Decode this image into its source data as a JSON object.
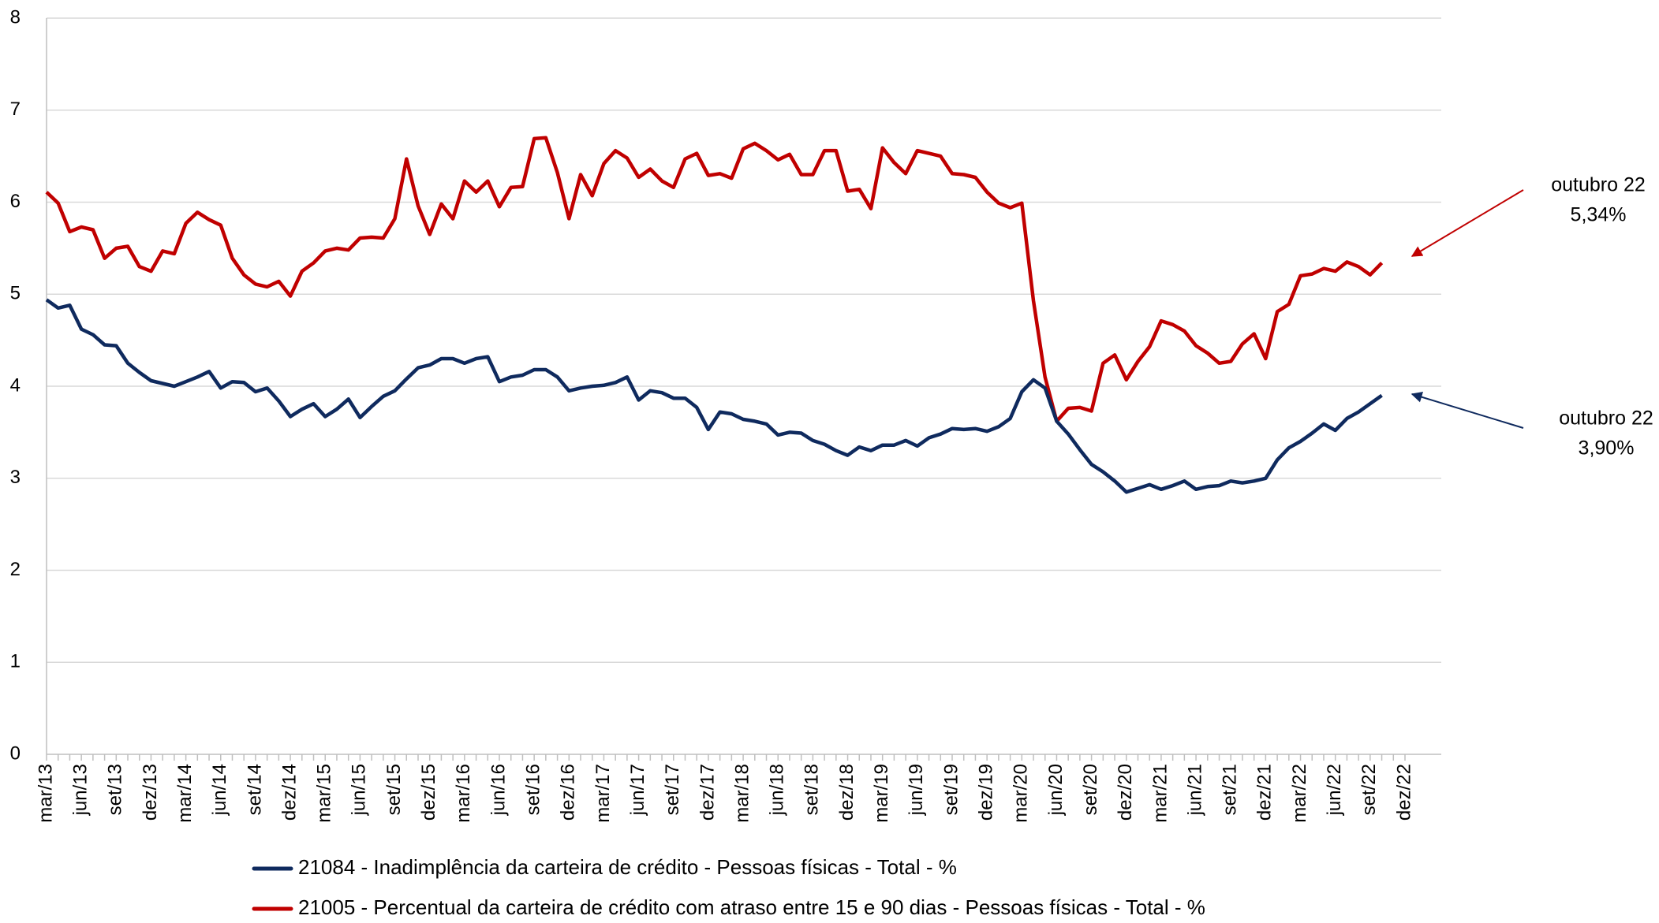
{
  "chart_data": {
    "type": "line",
    "categories": [
      "mar/13",
      null,
      null,
      "jun/13",
      null,
      null,
      "set/13",
      null,
      null,
      "dez/13",
      null,
      null,
      "mar/14",
      null,
      null,
      "jun/14",
      null,
      null,
      "set/14",
      null,
      null,
      "dez/14",
      null,
      null,
      "mar/15",
      null,
      null,
      "jun/15",
      null,
      null,
      "set/15",
      null,
      null,
      "dez/15",
      null,
      null,
      "mar/16",
      null,
      null,
      "jun/16",
      null,
      null,
      "set/16",
      null,
      null,
      "dez/16",
      null,
      null,
      "mar/17",
      null,
      null,
      "jun/17",
      null,
      null,
      "set/17",
      null,
      null,
      "dez/17",
      null,
      null,
      "mar/18",
      null,
      null,
      "jun/18",
      null,
      null,
      "set/18",
      null,
      null,
      "dez/18",
      null,
      null,
      "mar/19",
      null,
      null,
      "jun/19",
      null,
      null,
      "set/19",
      null,
      null,
      "dez/19",
      null,
      null,
      "mar/20",
      null,
      null,
      "jun/20",
      null,
      null,
      "set/20",
      null,
      null,
      "dez/20",
      null,
      null,
      "mar/21",
      null,
      null,
      "jun/21",
      null,
      null,
      "set/21",
      null,
      null,
      "dez/21",
      null,
      null,
      "mar/22",
      null,
      null,
      "jun/22",
      null,
      null,
      "set/22",
      null,
      null,
      "dez/22"
    ],
    "series": [
      {
        "name": "21084 - Inadimplência da carteira de crédito - Pessoas físicas - Total - %",
        "color": "#0f2a5e",
        "values": [
          4.94,
          4.85,
          4.88,
          4.62,
          4.56,
          4.45,
          4.44,
          4.25,
          4.15,
          4.06,
          4.03,
          4.0,
          4.05,
          4.1,
          4.16,
          3.98,
          4.05,
          4.04,
          3.94,
          3.98,
          3.84,
          3.67,
          3.75,
          3.81,
          3.67,
          3.75,
          3.86,
          3.66,
          3.78,
          3.89,
          3.95,
          4.08,
          4.2,
          4.23,
          4.3,
          4.3,
          4.25,
          4.3,
          4.32,
          4.05,
          4.1,
          4.12,
          4.18,
          4.18,
          4.1,
          3.95,
          3.98,
          4.0,
          4.01,
          4.04,
          4.1,
          3.85,
          3.95,
          3.93,
          3.87,
          3.87,
          3.77,
          3.53,
          3.72,
          3.7,
          3.64,
          3.62,
          3.59,
          3.47,
          3.5,
          3.49,
          3.41,
          3.37,
          3.3,
          3.25,
          3.34,
          3.3,
          3.36,
          3.36,
          3.41,
          3.35,
          3.44,
          3.48,
          3.54,
          3.53,
          3.54,
          3.51,
          3.56,
          3.65,
          3.94,
          4.07,
          3.98,
          3.62,
          3.48,
          3.31,
          3.15,
          3.07,
          2.97,
          2.85,
          2.89,
          2.93,
          2.88,
          2.92,
          2.97,
          2.88,
          2.91,
          2.92,
          2.97,
          2.95,
          2.97,
          3.0,
          3.2,
          3.33,
          3.4,
          3.49,
          3.59,
          3.52,
          3.65,
          3.72,
          3.81,
          3.9,
          null,
          null
        ]
      },
      {
        "name": "21005 - Percentual da carteira de crédito com atraso entre 15 e 90 dias - Pessoas físicas - Total - %",
        "color": "#c00000",
        "values": [
          6.11,
          5.99,
          5.68,
          5.73,
          5.7,
          5.39,
          5.5,
          5.52,
          5.3,
          5.25,
          5.47,
          5.44,
          5.77,
          5.89,
          5.81,
          5.75,
          5.39,
          5.21,
          5.11,
          5.08,
          5.14,
          4.98,
          5.25,
          5.34,
          5.47,
          5.5,
          5.48,
          5.61,
          5.62,
          5.61,
          5.82,
          6.47,
          5.96,
          5.65,
          5.98,
          5.82,
          6.23,
          6.11,
          6.23,
          5.95,
          6.16,
          6.17,
          6.69,
          6.7,
          6.32,
          5.82,
          6.3,
          6.07,
          6.42,
          6.56,
          6.48,
          6.27,
          6.36,
          6.23,
          6.16,
          6.47,
          6.53,
          6.29,
          6.31,
          6.26,
          6.58,
          6.64,
          6.56,
          6.46,
          6.52,
          6.3,
          6.3,
          6.56,
          6.56,
          6.12,
          6.14,
          5.93,
          6.59,
          6.43,
          6.31,
          6.56,
          6.53,
          6.5,
          6.31,
          6.3,
          6.27,
          6.11,
          5.99,
          5.94,
          5.99,
          4.93,
          4.1,
          3.62,
          3.76,
          3.77,
          3.73,
          4.25,
          4.34,
          4.07,
          4.27,
          4.43,
          4.71,
          4.67,
          4.6,
          4.44,
          4.36,
          4.25,
          4.27,
          4.46,
          4.57,
          4.3,
          4.81,
          4.89,
          5.2,
          5.22,
          5.28,
          5.25,
          5.35,
          5.3,
          5.21,
          5.34,
          null,
          null
        ]
      }
    ],
    "ylim": [
      0,
      8
    ],
    "yticks": [
      0,
      1,
      2,
      3,
      4,
      5,
      6,
      7,
      8
    ],
    "grid": true,
    "legend": "bottom",
    "annotations": [
      {
        "label": "outubro 22",
        "value_text": "5,34%"
      },
      {
        "label": "outubro 22",
        "value_text": "3,90%"
      }
    ]
  }
}
